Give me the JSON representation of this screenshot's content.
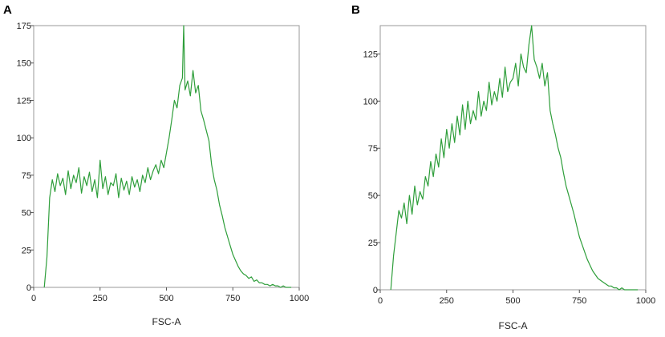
{
  "chart_data": [
    {
      "type": "line",
      "panel": "A",
      "xlabel": "FSC-A",
      "ylabel": "",
      "xlim": [
        0,
        1000
      ],
      "ylim": [
        0,
        175
      ],
      "xticks": [
        0,
        250,
        500,
        750,
        1000
      ],
      "yticks": [
        0,
        25,
        50,
        75,
        100,
        125,
        150,
        175
      ],
      "grid": false,
      "color": "#2e9e3a",
      "series": [
        {
          "x": [
            40,
            50,
            60,
            70,
            80,
            90,
            100,
            110,
            120,
            130,
            140,
            150,
            160,
            170,
            180,
            190,
            200,
            210,
            220,
            230,
            240,
            250,
            260,
            270,
            280,
            290,
            300,
            310,
            320,
            330,
            340,
            350,
            360,
            370,
            380,
            390,
            400,
            410,
            420,
            430,
            440,
            450,
            460,
            470,
            480,
            490,
            500,
            510,
            520,
            530,
            540,
            550,
            560,
            565,
            570,
            580,
            590,
            600,
            610,
            620,
            630,
            640,
            650,
            660,
            670,
            680,
            690,
            700,
            710,
            720,
            730,
            740,
            750,
            760,
            770,
            780,
            790,
            800,
            810,
            820,
            830,
            840,
            850,
            860,
            870,
            880,
            890,
            900,
            910,
            920,
            930,
            940,
            950,
            960,
            970
          ],
          "y": [
            0,
            20,
            60,
            72,
            64,
            76,
            68,
            73,
            62,
            78,
            66,
            75,
            70,
            80,
            63,
            74,
            68,
            77,
            64,
            72,
            60,
            85,
            66,
            74,
            62,
            70,
            68,
            76,
            60,
            73,
            65,
            71,
            62,
            74,
            67,
            72,
            64,
            75,
            70,
            80,
            72,
            78,
            82,
            76,
            85,
            80,
            90,
            100,
            112,
            125,
            120,
            135,
            140,
            175,
            132,
            138,
            128,
            145,
            130,
            135,
            118,
            112,
            105,
            98,
            82,
            72,
            65,
            55,
            48,
            40,
            34,
            28,
            22,
            18,
            14,
            11,
            9,
            8,
            6,
            7,
            4,
            5,
            3,
            3,
            2,
            2,
            1,
            2,
            1,
            1,
            0,
            1,
            0,
            0,
            0
          ]
        }
      ]
    },
    {
      "type": "line",
      "panel": "B",
      "xlabel": "FSC-A",
      "ylabel": "",
      "xlim": [
        0,
        1000
      ],
      "ylim": [
        0,
        140
      ],
      "xticks": [
        0,
        250,
        500,
        750,
        1000
      ],
      "yticks": [
        0,
        25,
        50,
        75,
        100,
        125
      ],
      "grid": false,
      "color": "#2e9e3a",
      "series": [
        {
          "x": [
            40,
            50,
            60,
            70,
            80,
            90,
            100,
            110,
            120,
            130,
            140,
            150,
            160,
            170,
            180,
            190,
            200,
            210,
            220,
            230,
            240,
            250,
            260,
            270,
            280,
            290,
            300,
            310,
            320,
            330,
            340,
            350,
            360,
            370,
            380,
            390,
            400,
            410,
            420,
            430,
            440,
            450,
            460,
            470,
            480,
            490,
            500,
            510,
            520,
            530,
            540,
            550,
            560,
            570,
            580,
            590,
            600,
            610,
            620,
            630,
            640,
            650,
            660,
            670,
            680,
            690,
            700,
            710,
            720,
            730,
            740,
            750,
            760,
            770,
            780,
            790,
            800,
            810,
            820,
            830,
            840,
            850,
            860,
            870,
            880,
            890,
            900,
            910,
            920,
            930,
            940,
            950,
            960,
            970
          ],
          "y": [
            0,
            18,
            30,
            42,
            38,
            46,
            35,
            50,
            40,
            55,
            45,
            52,
            48,
            60,
            55,
            68,
            60,
            72,
            65,
            80,
            70,
            85,
            75,
            88,
            78,
            92,
            82,
            98,
            85,
            100,
            88,
            95,
            90,
            105,
            92,
            100,
            95,
            110,
            98,
            105,
            100,
            112,
            102,
            118,
            105,
            110,
            112,
            120,
            108,
            125,
            118,
            115,
            130,
            140,
            122,
            118,
            112,
            120,
            108,
            115,
            95,
            88,
            82,
            75,
            70,
            62,
            55,
            50,
            45,
            40,
            34,
            28,
            24,
            20,
            16,
            13,
            10,
            8,
            6,
            5,
            4,
            3,
            2,
            2,
            1,
            1,
            0,
            1,
            0,
            0,
            0,
            0,
            0,
            0
          ]
        }
      ]
    }
  ]
}
